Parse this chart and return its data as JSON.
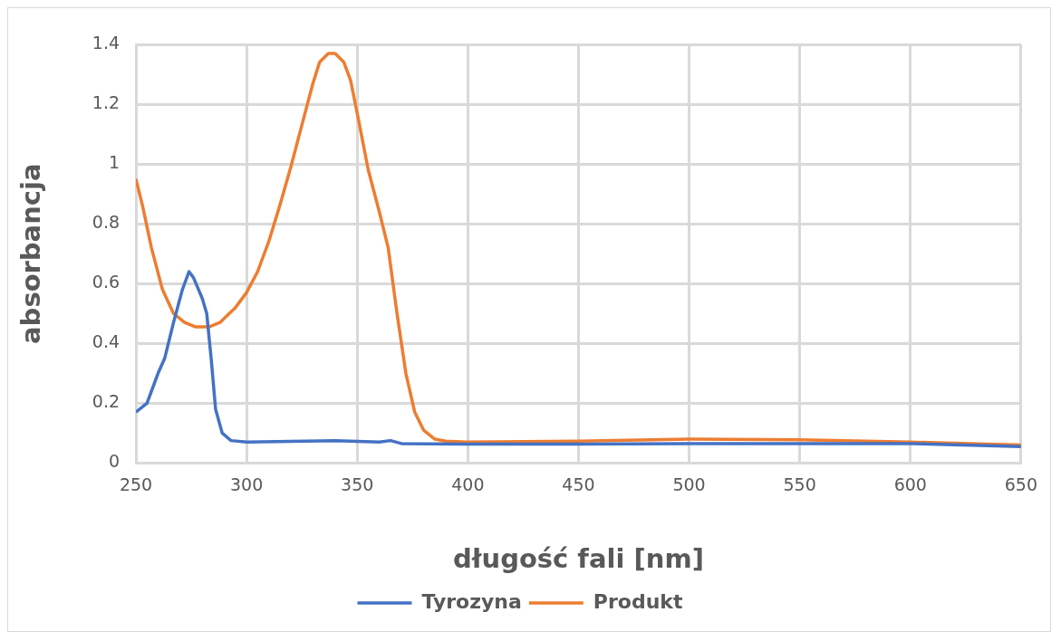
{
  "chart_data": {
    "type": "line",
    "xlabel": "długość fali [nm]",
    "ylabel": "absorbancja",
    "xlim": [
      250,
      650
    ],
    "xticks": [
      250,
      300,
      350,
      400,
      450,
      500,
      550,
      600,
      650
    ],
    "ylim": [
      0,
      1.4
    ],
    "yticks": [
      0,
      0.2,
      0.4,
      0.6,
      0.8,
      1,
      1.2,
      1.4
    ],
    "grid": true,
    "legend": "bottom",
    "marker": "none",
    "line_style": "solid",
    "series": [
      {
        "name": "Tyrozyna",
        "color": "#4472c4",
        "x": [
          250,
          255,
          260,
          263,
          267,
          271,
          274,
          276,
          280,
          282,
          284,
          286,
          289,
          293,
          300,
          320,
          340,
          360,
          365,
          370,
          400,
          450,
          500,
          550,
          600,
          650
        ],
        "values": [
          0.17,
          0.2,
          0.3,
          0.35,
          0.47,
          0.58,
          0.64,
          0.62,
          0.55,
          0.5,
          0.35,
          0.18,
          0.1,
          0.075,
          0.07,
          0.072,
          0.075,
          0.07,
          0.075,
          0.065,
          0.063,
          0.063,
          0.065,
          0.065,
          0.065,
          0.055
        ]
      },
      {
        "name": "Produkt",
        "color": "#ed7d31",
        "x": [
          250,
          253,
          257,
          262,
          267,
          272,
          277,
          283,
          288,
          295,
          300,
          305,
          310,
          315,
          320,
          325,
          330,
          333,
          337,
          340,
          344,
          347,
          350,
          355,
          360,
          364,
          368,
          372,
          376,
          380,
          385,
          390,
          400,
          450,
          500,
          550,
          600,
          650
        ],
        "values": [
          0.95,
          0.86,
          0.72,
          0.58,
          0.5,
          0.47,
          0.455,
          0.455,
          0.47,
          0.52,
          0.57,
          0.64,
          0.74,
          0.86,
          0.99,
          1.13,
          1.27,
          1.34,
          1.37,
          1.37,
          1.34,
          1.28,
          1.17,
          0.98,
          0.84,
          0.72,
          0.5,
          0.3,
          0.17,
          0.11,
          0.08,
          0.073,
          0.07,
          0.073,
          0.08,
          0.078,
          0.07,
          0.06
        ]
      }
    ]
  }
}
